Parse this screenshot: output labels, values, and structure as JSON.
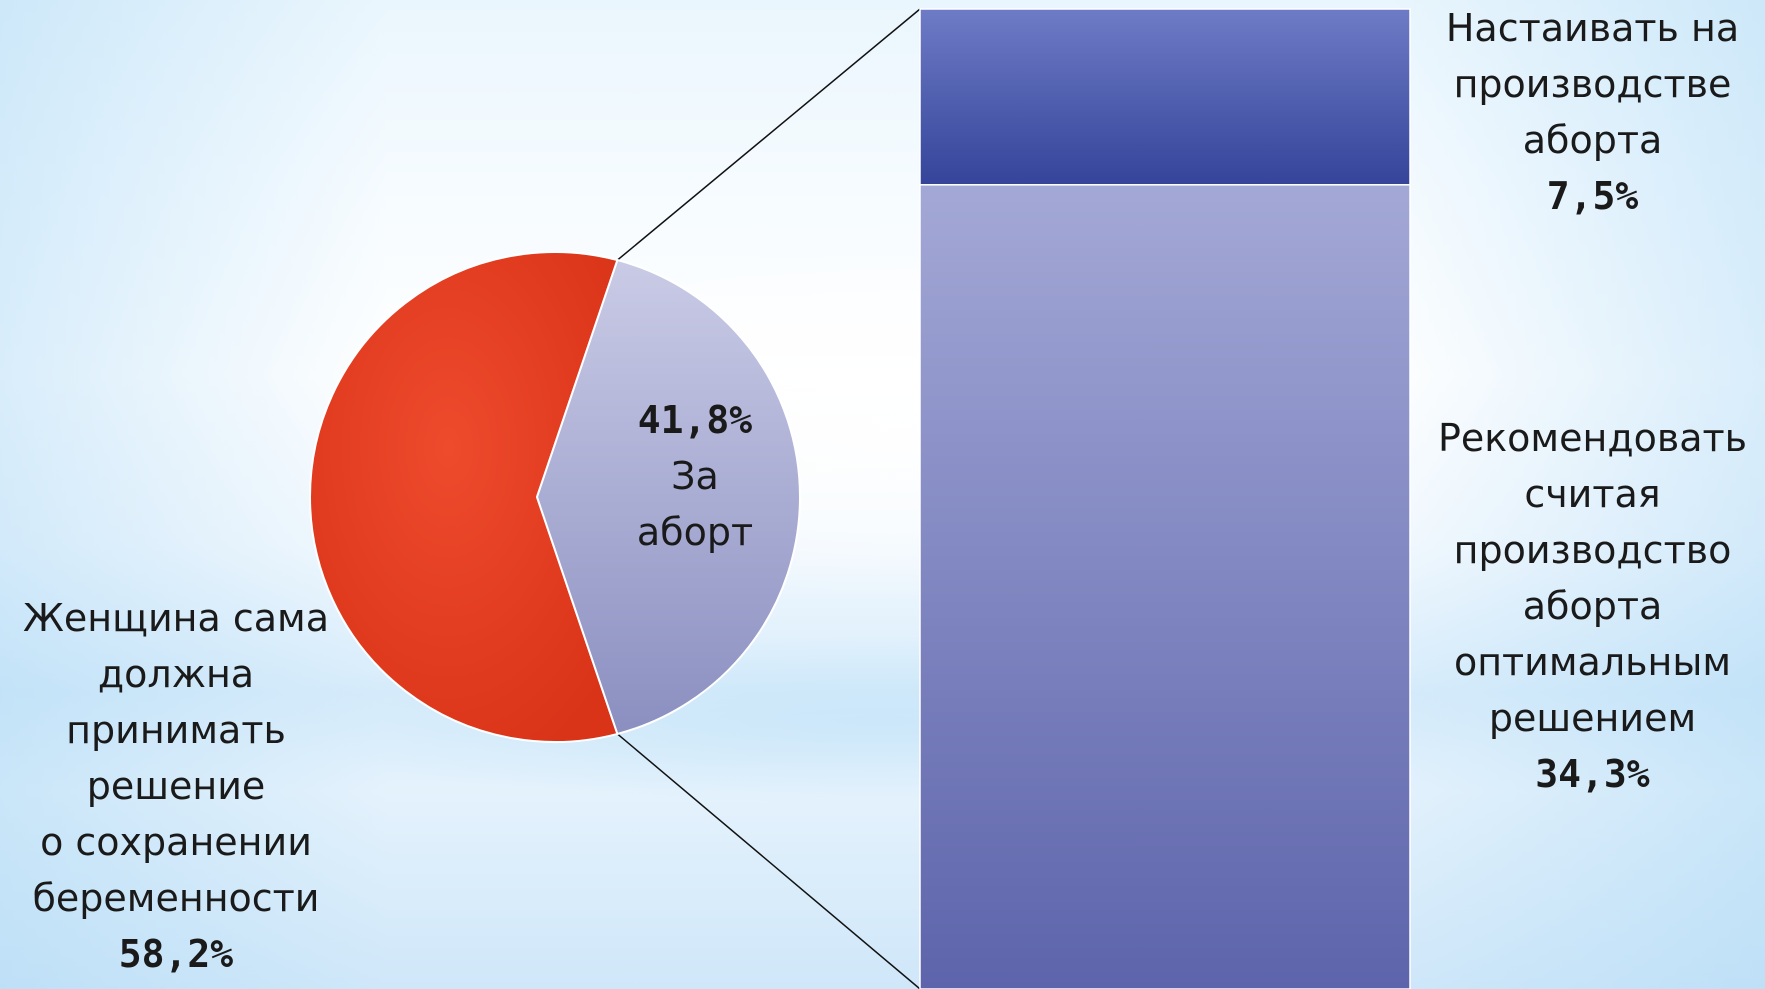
{
  "colors": {
    "pie_women": "#e33c22",
    "pie_for": "#a9aed4",
    "bar_insist": "#3c4a9e",
    "bar_recommend": "#8a91c7",
    "connector": "#111111"
  },
  "labels": {
    "women": {
      "text": "Женщина сама должна принимать решение о сохранении беременности",
      "lines": [
        "Женщина сама",
        "должна",
        "принимать",
        "решение",
        "о сохранении",
        "беременности"
      ],
      "value": "58,2%"
    },
    "pie_for": {
      "value": "41,8%",
      "lines": [
        "За",
        "аборт"
      ]
    },
    "insist": {
      "lines": [
        "Настаивать на",
        "производстве",
        "аборта"
      ],
      "value": "7,5%"
    },
    "recommend": {
      "lines": [
        "Рекомендовать",
        "считая",
        "производство",
        "аборта",
        "оптимальным",
        "решением"
      ],
      "value": "34,3%"
    }
  },
  "chart_data": {
    "type": "pie",
    "subtype": "bar-of-pie",
    "slices": [
      {
        "label": "Женщина сама должна принимать решение о сохранении беременности",
        "value": 58.2
      },
      {
        "label": "За аборт",
        "value": 41.8
      }
    ],
    "breakdown_of": "За аборт",
    "breakdown": [
      {
        "label": "Настаивать на производстве аборта",
        "value": 7.5
      },
      {
        "label": "Рекомендовать считая производство аборта оптимальным решением",
        "value": 34.3
      }
    ]
  }
}
